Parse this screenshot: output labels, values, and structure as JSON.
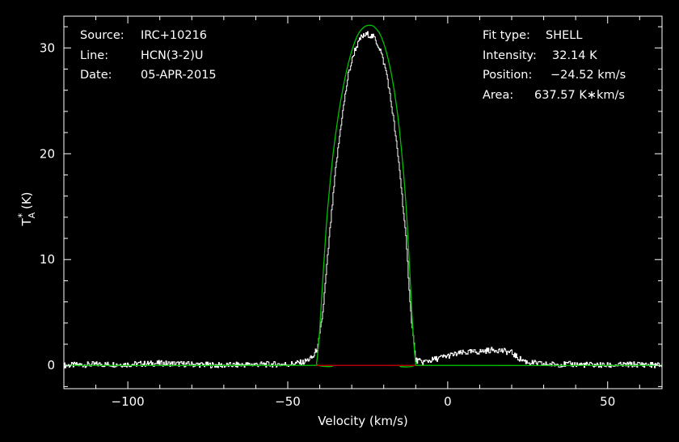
{
  "info_left": [
    {
      "key": "Source:",
      "value": "IRC+10216"
    },
    {
      "key": "Line:",
      "value": "HCN(3-2)U"
    },
    {
      "key": "Date:",
      "value": "05-APR-2015"
    }
  ],
  "info_right": [
    {
      "key": "Fit type:",
      "value": "SHELL"
    },
    {
      "key": "Intensity:",
      "value": "32.14 K"
    },
    {
      "key": "Position:",
      "value": "−24.52 km/s"
    },
    {
      "key": "Area:",
      "value": "637.57 K∗km/s"
    }
  ],
  "colors": {
    "background": "#000000",
    "axes": "#ffffff",
    "spectrum": "#ffffff",
    "fit": "#00c000",
    "baseline": "#b00000"
  },
  "chart_data": {
    "type": "line",
    "xlabel": "Velocity (km/s)",
    "ylabel": "T_A* (K)",
    "xlim": [
      -120,
      67
    ],
    "ylim": [
      -2.2,
      33
    ],
    "xticks": [
      -100,
      -50,
      0,
      50
    ],
    "xtick_labels": [
      "−100",
      "−50",
      "0",
      "50"
    ],
    "yticks": [
      0,
      10,
      20,
      30
    ],
    "ytick_labels": [
      "0",
      "10",
      "20",
      "30"
    ],
    "grid": false,
    "series": [
      {
        "kind": "spectrum",
        "x": [
          -120,
          -110,
          -100,
          -90,
          -80,
          -70,
          -60,
          -50,
          -45,
          -42,
          -40.5,
          -39,
          -37,
          -35,
          -33,
          -31,
          -29,
          -27,
          -25,
          -23,
          -21,
          -19,
          -17,
          -15,
          -13,
          -11.5,
          -10,
          -8,
          -5,
          0,
          5,
          10,
          15,
          20,
          22,
          25,
          30,
          40,
          50,
          60,
          67
        ],
        "y": [
          0,
          0.1,
          0.1,
          0.2,
          0.1,
          0,
          0.1,
          0.1,
          0.3,
          0.8,
          1.8,
          5,
          12,
          18.5,
          23.5,
          27.5,
          29.8,
          31,
          31.3,
          31,
          29.8,
          27.5,
          23.5,
          18.5,
          12,
          5,
          0.5,
          0.3,
          0.5,
          0.9,
          1.2,
          1.3,
          1.5,
          1.2,
          0.7,
          0.3,
          0.1,
          0.1,
          0,
          0.1,
          0
        ]
      },
      {
        "kind": "fit",
        "x": [
          -120,
          -42,
          -41,
          -40,
          -38,
          -36,
          -34,
          -32,
          -30,
          -28,
          -26,
          -24.5,
          -23,
          -21,
          -19,
          -17,
          -15,
          -13,
          -11,
          -10,
          -9,
          67
        ],
        "y": [
          0,
          0,
          0.2,
          3.5,
          13,
          19.5,
          24,
          27.3,
          29.7,
          31.3,
          32,
          32.14,
          32,
          31.2,
          29.4,
          26.5,
          22,
          15,
          4,
          0.2,
          0,
          0
        ]
      },
      {
        "kind": "baseline",
        "x": [
          -41,
          -10
        ],
        "y": [
          0,
          0
        ]
      }
    ]
  }
}
